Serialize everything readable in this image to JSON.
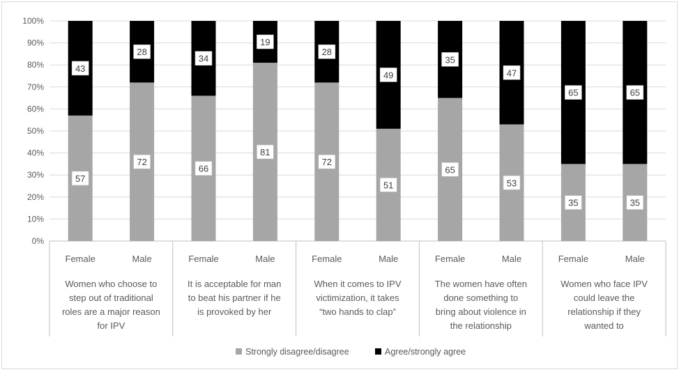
{
  "chart_data": {
    "type": "bar",
    "stacked": true,
    "percent_stacked": true,
    "ylim": [
      0,
      100
    ],
    "yticks": [
      "0%",
      "10%",
      "20%",
      "30%",
      "40%",
      "50%",
      "60%",
      "70%",
      "80%",
      "90%",
      "100%"
    ],
    "grid": true,
    "legend_placement": "bottom",
    "groups": [
      {
        "label_lines": [
          "Women who choose to",
          "step out of traditional",
          "roles are a major reason",
          "for IPV"
        ],
        "bars": [
          {
            "sub": "Female",
            "values": [
              57,
              43
            ]
          },
          {
            "sub": "Male",
            "values": [
              72,
              28
            ]
          }
        ]
      },
      {
        "label_lines": [
          "It is acceptable for man",
          "to beat his partner if he",
          "is provoked by her"
        ],
        "bars": [
          {
            "sub": "Female",
            "values": [
              66,
              34
            ]
          },
          {
            "sub": "Male",
            "values": [
              81,
              19
            ]
          }
        ]
      },
      {
        "label_lines": [
          "When it comes to IPV",
          "victimization, it takes",
          "“two hands to clap”"
        ],
        "bars": [
          {
            "sub": "Female",
            "values": [
              72,
              28
            ]
          },
          {
            "sub": "Male",
            "values": [
              51,
              49
            ]
          }
        ]
      },
      {
        "label_lines": [
          "The women have often",
          "done something to",
          "bring about violence in",
          "the relationship"
        ],
        "bars": [
          {
            "sub": "Female",
            "values": [
              65,
              35
            ]
          },
          {
            "sub": "Male",
            "values": [
              53,
              47
            ]
          }
        ]
      },
      {
        "label_lines": [
          "Women who face IPV",
          "could leave the",
          "relationship if they",
          "wanted to"
        ],
        "bars": [
          {
            "sub": "Female",
            "values": [
              35,
              65
            ]
          },
          {
            "sub": "Male",
            "values": [
              35,
              65
            ]
          }
        ]
      }
    ],
    "series": [
      {
        "name": "Strongly disagree/disagree",
        "color": "#a6a6a6"
      },
      {
        "name": "Agree/strongly agree",
        "color": "#000000"
      }
    ]
  }
}
